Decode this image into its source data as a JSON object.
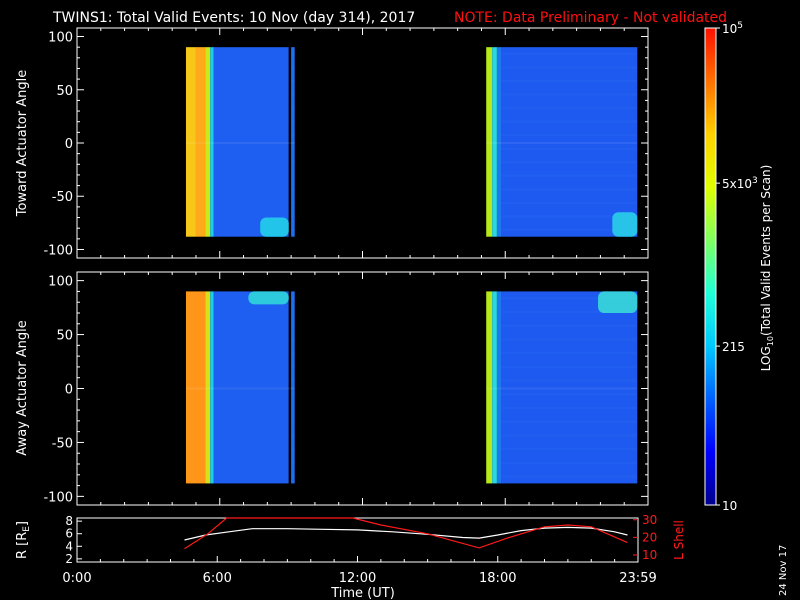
{
  "title": "TWINS1: Total Valid Events: 10 Nov (day 314), 2017",
  "note": "NOTE: Data Preliminary - Not validated",
  "date_stamp": "24 Nov 17",
  "colors": {
    "background": "#000000",
    "axes": "#ffffff",
    "note": "#ff1010",
    "orbit_R": "#ffffff",
    "orbit_L": "#ff1a1a"
  },
  "chart_data": [
    {
      "type": "heatmap",
      "panel": "top",
      "ylabel": "Toward Actuator Angle",
      "ylim": [
        -108,
        108
      ],
      "yticks": [
        100,
        50,
        0,
        -50,
        -100
      ],
      "xlim": [
        0,
        24
      ],
      "xticks": [
        0,
        6,
        12,
        18,
        24
      ],
      "blocks": [
        {
          "start_h": 4.58,
          "end_h": 9.15,
          "angle_range": [
            -88,
            90
          ],
          "strips": [
            {
              "t0": 4.58,
              "t1": 5.0,
              "color": "#f7c81a"
            },
            {
              "t0": 5.0,
              "t1": 5.4,
              "color": "#ffaa1a"
            },
            {
              "t0": 5.4,
              "t1": 5.6,
              "color": "#cde81a"
            },
            {
              "t0": 5.6,
              "t1": 5.75,
              "color": "#1ad0e8"
            },
            {
              "t0": 5.75,
              "t1": 8.9,
              "color": "#1e5ef0"
            },
            {
              "t0": 8.9,
              "t1": 9.0,
              "color": "#000000"
            },
            {
              "t0": 9.0,
              "t1": 9.15,
              "color": "#1e6ef0"
            }
          ],
          "hotspot": {
            "t0": 7.7,
            "t1": 8.9,
            "a0": -88,
            "a1": -70,
            "color": "#25d6e8"
          }
        },
        {
          "start_h": 17.2,
          "end_h": 23.55,
          "angle_range": [
            -88,
            90
          ],
          "strips": [
            {
              "t0": 17.2,
              "t1": 17.45,
              "color": "#b8e81a"
            },
            {
              "t0": 17.45,
              "t1": 17.65,
              "color": "#2ad8e0"
            },
            {
              "t0": 17.65,
              "t1": 17.85,
              "color": "#1e78ee"
            },
            {
              "t0": 17.85,
              "t1": 23.55,
              "color": "#1e5af0"
            }
          ],
          "hotspot": {
            "t0": 22.5,
            "t1": 23.55,
            "a0": -88,
            "a1": -65,
            "color": "#2ad6e6"
          }
        }
      ]
    },
    {
      "type": "heatmap",
      "panel": "bottom",
      "ylabel": "Away Actuator Angle",
      "ylim": [
        -108,
        108
      ],
      "yticks": [
        100,
        50,
        0,
        -50,
        -100
      ],
      "xlim": [
        0,
        24
      ],
      "xticks": [
        0,
        6,
        12,
        18,
        24
      ],
      "blocks": [
        {
          "start_h": 4.58,
          "end_h": 9.15,
          "angle_range": [
            -88,
            90
          ],
          "strips": [
            {
              "t0": 4.58,
              "t1": 5.4,
              "color": "#ff961a"
            },
            {
              "t0": 5.4,
              "t1": 5.6,
              "color": "#d8e01a"
            },
            {
              "t0": 5.6,
              "t1": 5.75,
              "color": "#1ad0e8"
            },
            {
              "t0": 5.75,
              "t1": 8.9,
              "color": "#1e5ef0"
            },
            {
              "t0": 8.9,
              "t1": 9.0,
              "color": "#000000"
            },
            {
              "t0": 9.0,
              "t1": 9.15,
              "color": "#1e6ef0"
            }
          ],
          "hotspot": {
            "t0": 7.2,
            "t1": 8.9,
            "a0": 78,
            "a1": 90,
            "color": "#30dcd8"
          }
        },
        {
          "start_h": 17.2,
          "end_h": 23.55,
          "angle_range": [
            -88,
            90
          ],
          "strips": [
            {
              "t0": 17.2,
              "t1": 17.45,
              "color": "#b8e81a"
            },
            {
              "t0": 17.45,
              "t1": 17.65,
              "color": "#2ad8e0"
            },
            {
              "t0": 17.65,
              "t1": 17.85,
              "color": "#1e78ee"
            },
            {
              "t0": 17.85,
              "t1": 23.55,
              "color": "#1e5af0"
            }
          ],
          "hotspot": {
            "t0": 21.9,
            "t1": 23.55,
            "a0": 70,
            "a1": 90,
            "color": "#3ae0d8"
          }
        }
      ]
    },
    {
      "type": "line",
      "panel": "orbit",
      "xlabel": "Time (UT)",
      "xlim": [
        0,
        24
      ],
      "xticks": [
        0,
        6,
        12,
        18,
        24
      ],
      "xticklabels": [
        "0:00",
        "6:00",
        "12:00",
        "18:00",
        "23:59"
      ],
      "left_axis": {
        "label": "R [RE]",
        "ylim": [
          1.5,
          8.5
        ],
        "ticks": [
          2,
          4,
          6,
          8
        ]
      },
      "right_axis": {
        "label": "L Shell",
        "ylim": [
          6,
          31
        ],
        "ticks": [
          10,
          20,
          30
        ]
      },
      "series": [
        {
          "axis": "left",
          "x": [
            4.6,
            5.5,
            6.5,
            7.5,
            9,
            10.5,
            12,
            13.5,
            15,
            16.5,
            17.2,
            18,
            19,
            20,
            21,
            22,
            23,
            23.55
          ],
          "y": [
            5.0,
            5.8,
            6.3,
            6.8,
            6.8,
            6.7,
            6.6,
            6.3,
            5.9,
            5.4,
            5.3,
            5.8,
            6.5,
            6.9,
            7.0,
            6.9,
            6.3,
            5.8
          ]
        },
        {
          "axis": "right",
          "x": [
            4.6,
            5.6,
            6.4,
            11.8,
            13.0,
            15.0,
            17.2,
            18.5,
            20.0,
            21.0,
            22.0,
            23.55
          ],
          "y": [
            13.5,
            22,
            31,
            31,
            27,
            22,
            14,
            20,
            26,
            27,
            26,
            17
          ]
        }
      ]
    }
  ],
  "colorbar": {
    "label": "LOG",
    "label_sub": "10",
    "label_rest": "(Total Valid Events per Scan)",
    "min": 10,
    "max": 100000,
    "ticks": [
      {
        "value": 10,
        "label": "10"
      },
      {
        "value": 215,
        "label": "215"
      },
      {
        "value": 5000,
        "label": "5x10",
        "exp": "3"
      },
      {
        "value": 100000,
        "label": "10",
        "exp": "5"
      }
    ],
    "stops": [
      "#00008c",
      "#0000ff",
      "#0060ff",
      "#00c8ff",
      "#20ffd8",
      "#80ff60",
      "#e0ff00",
      "#ffd000",
      "#ff7000",
      "#ff1000"
    ]
  }
}
